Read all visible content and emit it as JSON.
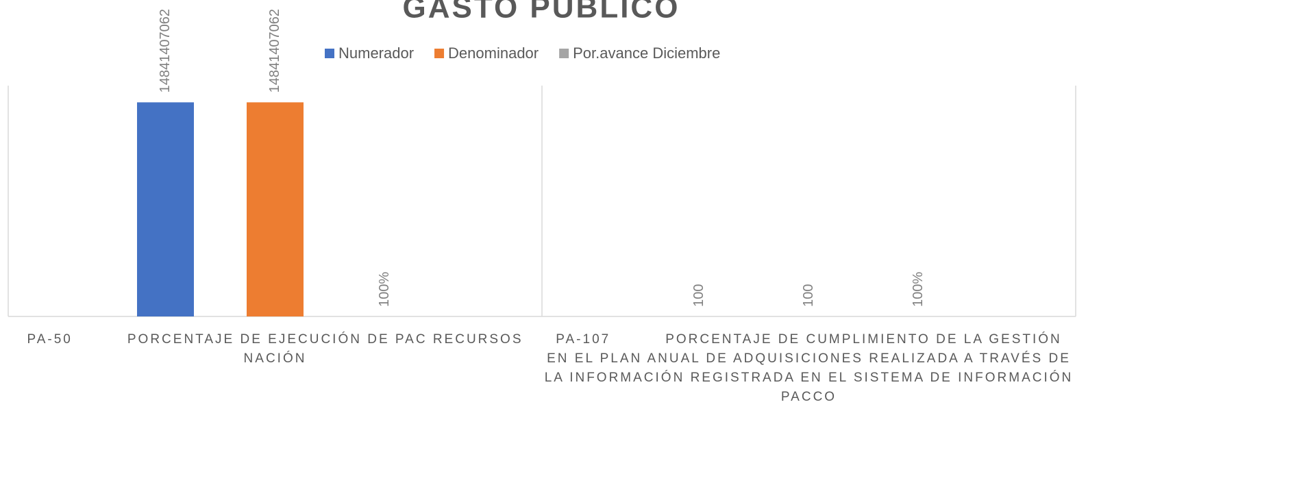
{
  "chart_data": {
    "type": "bar",
    "title": "GASTO PÚBLICO",
    "category_groups": [
      "PA-50",
      "PA-107"
    ],
    "categories": [
      "PORCENTAJE DE EJECUCIÓN DE PAC RECURSOS NACIÓN",
      "PORCENTAJE DE CUMPLIMIENTO DE LA GESTIÓN EN EL PLAN ANUAL DE ADQUISICIONES REALIZADA A TRAVÉS DE LA INFORMACIÓN REGISTRADA EN EL SISTEMA DE INFORMACIÓN PACCO"
    ],
    "series": [
      {
        "name": "Numerador",
        "color": "#4472c4",
        "values": [
          14841407062,
          100
        ]
      },
      {
        "name": "Denominador",
        "color": "#ed7d31",
        "values": [
          14841407062,
          100
        ]
      },
      {
        "name": "Por.avance Diciembre",
        "color": "#a5a5a5",
        "values": [
          100,
          100
        ],
        "value_labels": [
          "100%",
          "100%"
        ]
      }
    ],
    "ylim": [
      0,
      16000000000
    ],
    "legend": "top"
  }
}
